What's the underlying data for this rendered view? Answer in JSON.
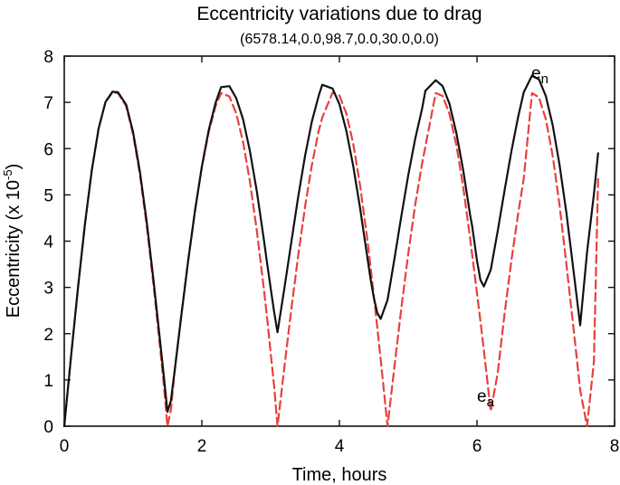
{
  "chart_data": {
    "type": "line",
    "title": "Eccentricity variations due to drag",
    "subtitle": "(6578.14,0.0,98.7,0.0,30.0,0.0)",
    "xlabel": "Time, hours",
    "ylabel": "Eccentricity (x 10",
    "ylabel_exponent": "-5",
    "ylabel_close": ")",
    "xlim": [
      0,
      8
    ],
    "ylim": [
      0,
      8
    ],
    "xticks": [
      "0",
      "2",
      "4",
      "6",
      "8"
    ],
    "yticks": [
      "0",
      "1",
      "2",
      "3",
      "4",
      "5",
      "6",
      "7",
      "8"
    ],
    "grid": false,
    "series": [
      {
        "name": "e",
        "subscript": "n",
        "color": "#111111",
        "style": "solid",
        "period_hours": 1.47,
        "x": [
          0,
          0.1,
          0.2,
          0.3,
          0.4,
          0.5,
          0.6,
          0.7,
          0.78,
          0.9,
          1.0,
          1.1,
          1.2,
          1.3,
          1.4,
          1.45,
          1.5,
          1.55,
          1.6,
          1.7,
          1.8,
          1.9,
          2.0,
          2.1,
          2.2,
          2.28,
          2.4,
          2.5,
          2.6,
          2.7,
          2.8,
          2.9,
          2.95,
          3.0,
          3.05,
          3.1,
          3.2,
          3.3,
          3.4,
          3.5,
          3.6,
          3.7,
          3.75,
          3.9,
          4.0,
          4.1,
          4.2,
          4.3,
          4.4,
          4.45,
          4.5,
          4.55,
          4.6,
          4.7,
          4.8,
          4.9,
          5.0,
          5.1,
          5.2,
          5.25,
          5.4,
          5.5,
          5.6,
          5.7,
          5.8,
          5.9,
          5.93,
          6.0,
          6.05,
          6.1,
          6.2,
          6.3,
          6.4,
          6.5,
          6.6,
          6.68,
          6.8,
          6.9,
          7.0,
          7.1,
          7.2,
          7.3,
          7.38,
          7.45,
          7.5,
          7.6,
          7.7,
          7.76
        ],
        "y": [
          0.0,
          1.53,
          3.0,
          4.36,
          5.53,
          6.44,
          7.01,
          7.23,
          7.22,
          6.95,
          6.36,
          5.5,
          4.4,
          3.12,
          1.74,
          1.04,
          0.31,
          0.55,
          1.14,
          2.37,
          3.56,
          4.65,
          5.61,
          6.4,
          6.99,
          7.33,
          7.35,
          7.09,
          6.63,
          5.94,
          5.07,
          4.05,
          3.51,
          2.99,
          2.48,
          2.03,
          2.98,
          3.97,
          4.95,
          5.84,
          6.59,
          7.15,
          7.38,
          7.3,
          6.96,
          6.39,
          5.63,
          4.72,
          3.71,
          3.21,
          2.78,
          2.45,
          2.32,
          2.73,
          3.62,
          4.54,
          5.42,
          6.2,
          6.85,
          7.25,
          7.48,
          7.35,
          6.97,
          6.34,
          5.53,
          4.57,
          4.32,
          3.58,
          3.16,
          3.02,
          3.38,
          4.21,
          5.09,
          5.94,
          6.7,
          7.22,
          7.58,
          7.5,
          7.14,
          6.51,
          5.65,
          4.61,
          3.64,
          2.79,
          2.18,
          3.76,
          5.02,
          5.9
        ]
      },
      {
        "name": "e",
        "subscript": "a",
        "color": "#e8413c",
        "style": "dashed",
        "x": [
          0,
          0.1,
          0.2,
          0.3,
          0.4,
          0.5,
          0.6,
          0.7,
          0.78,
          0.9,
          1.0,
          1.1,
          1.2,
          1.3,
          1.4,
          1.45,
          1.5,
          1.55,
          1.6,
          1.7,
          1.8,
          1.9,
          2.0,
          2.1,
          2.2,
          2.28,
          2.4,
          2.5,
          2.6,
          2.7,
          2.8,
          2.9,
          2.95,
          3.0,
          3.05,
          3.1,
          3.2,
          3.3,
          3.4,
          3.5,
          3.6,
          3.7,
          3.75,
          3.9,
          4.0,
          4.1,
          4.2,
          4.3,
          4.4,
          4.45,
          4.5,
          4.55,
          4.6,
          4.7,
          4.8,
          4.9,
          5.0,
          5.1,
          5.2,
          5.25,
          5.4,
          5.5,
          5.6,
          5.7,
          5.8,
          5.9,
          5.93,
          6.0,
          6.05,
          6.1,
          6.2,
          6.3,
          6.4,
          6.5,
          6.6,
          6.68,
          6.8,
          6.9,
          7.0,
          7.1,
          7.2,
          7.3,
          7.38,
          7.45,
          7.5,
          7.6,
          7.7,
          7.76
        ],
        "y": [
          0.0,
          1.53,
          3.0,
          4.36,
          5.53,
          6.44,
          7.01,
          7.21,
          7.2,
          6.92,
          6.31,
          5.44,
          4.32,
          3.02,
          1.6,
          0.85,
          0.0,
          0.35,
          1.12,
          2.38,
          3.58,
          4.66,
          5.6,
          6.36,
          6.92,
          7.2,
          7.13,
          6.76,
          6.14,
          5.28,
          4.22,
          2.99,
          2.32,
          1.6,
          0.88,
          0.0,
          1.28,
          2.52,
          3.68,
          4.74,
          5.65,
          6.39,
          6.67,
          7.21,
          7.15,
          6.76,
          6.11,
          5.21,
          4.1,
          3.48,
          2.82,
          2.14,
          1.44,
          0.0,
          1.29,
          2.55,
          3.72,
          4.77,
          5.66,
          6.05,
          7.2,
          7.14,
          6.75,
          6.08,
          5.17,
          4.06,
          3.7,
          2.88,
          2.27,
          1.64,
          0.32,
          1.14,
          2.42,
          3.58,
          4.61,
          5.36,
          7.2,
          7.11,
          6.64,
          5.85,
          4.78,
          3.5,
          2.42,
          1.48,
          0.78,
          0.0,
          1.4,
          5.35
        ]
      }
    ],
    "annotations": [
      {
        "base": "e",
        "sub": "n",
        "near_x": 6.68,
        "near_y": 7.7
      },
      {
        "base": "e",
        "sub": "a",
        "near_x": 5.93,
        "near_y": 0.5
      }
    ]
  }
}
